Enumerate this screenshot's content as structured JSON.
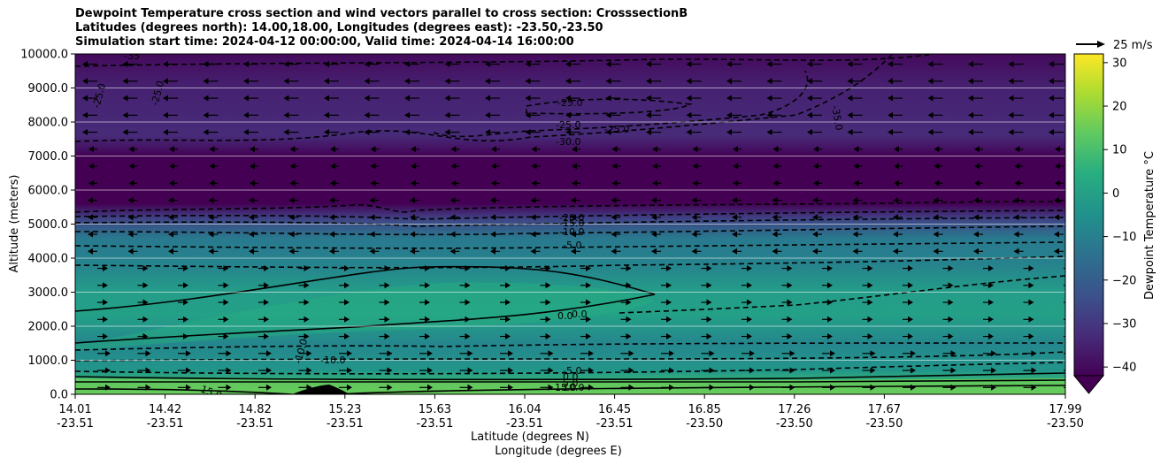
{
  "header": {
    "title_line1": "Dewpoint Temperature cross section and wind vectors parallel to cross section: CrosssectionB",
    "title_line2": "Latitudes (degrees north): 14.00,18.00, Longitudes (degrees east): -23.50,-23.50",
    "title_line3": "Simulation start time: 2024-04-12 00:00:00, Valid time: 2024-04-14 16:00:00"
  },
  "chart_data": {
    "type": "heatmap",
    "ylabel": "Altitude (meters)",
    "xlabel_line1": "Latitude (degrees N)",
    "xlabel_line2": "Longitude (degrees E)",
    "ylim": [
      0,
      10000
    ],
    "yticks": [
      "0.0",
      "1000.0",
      "2000.0",
      "3000.0",
      "4000.0",
      "5000.0",
      "6000.0",
      "7000.0",
      "8000.0",
      "9000.0",
      "10000.0"
    ],
    "xticks": [
      {
        "lat": "14.01",
        "lon": "-23.51"
      },
      {
        "lat": "14.42",
        "lon": "-23.51"
      },
      {
        "lat": "14.82",
        "lon": "-23.51"
      },
      {
        "lat": "15.23",
        "lon": "-23.51"
      },
      {
        "lat": "15.63",
        "lon": "-23.51"
      },
      {
        "lat": "16.04",
        "lon": "-23.51"
      },
      {
        "lat": "16.45",
        "lon": "-23.51"
      },
      {
        "lat": "16.85",
        "lon": "-23.50"
      },
      {
        "lat": "17.26",
        "lon": "-23.50"
      },
      {
        "lat": "17.67",
        "lon": "-23.50"
      },
      {
        "lat": "17.99",
        "lon": "-23.50"
      }
    ],
    "grid": "horizontal",
    "colorbar": {
      "label": "Dewpoint Temperature °C",
      "range": [
        -42,
        32
      ],
      "ticks": [
        "30",
        "20",
        "10",
        "0",
        "−10",
        "−20",
        "−30",
        "−40"
      ],
      "extend": "min",
      "colormap": "viridis"
    },
    "wind_key": "25 m/s",
    "dewpoint_layers": [
      {
        "alt": 0,
        "value": 14
      },
      {
        "alt": 300,
        "value": 8
      },
      {
        "alt": 700,
        "value": -3
      },
      {
        "alt": 1500,
        "value": -8
      },
      {
        "alt": 2300,
        "value": 0
      },
      {
        "alt": 3000,
        "value": -1
      },
      {
        "alt": 3800,
        "value": -9
      },
      {
        "alt": 4600,
        "value": -12
      },
      {
        "alt": 5200,
        "value": -28
      },
      {
        "alt": 5600,
        "value": -42
      },
      {
        "alt": 7000,
        "value": -42
      },
      {
        "alt": 7600,
        "value": -33
      },
      {
        "alt": 9000,
        "value": -35
      },
      {
        "alt": 10000,
        "value": -40
      }
    ],
    "contour_labels": [
      {
        "text": "-25.0"
      },
      {
        "text": "-25.0"
      },
      {
        "text": "-25.0"
      },
      {
        "text": "-25.0"
      },
      {
        "text": "-25.0"
      },
      {
        "text": "-30.0"
      },
      {
        "text": "-35.0"
      },
      {
        "text": "-35"
      },
      {
        "text": "-20.0"
      },
      {
        "text": "-15.0"
      },
      {
        "text": "-10.0"
      },
      {
        "text": "-5.0"
      },
      {
        "text": "0.0"
      },
      {
        "text": "0.0"
      },
      {
        "text": "-10.0"
      },
      {
        "text": "-10.0"
      },
      {
        "text": "-5.0"
      },
      {
        "text": "0.0"
      },
      {
        "text": "5.0"
      },
      {
        "text": "10.0"
      },
      {
        "text": "15.0"
      },
      {
        "text": "15.0"
      }
    ]
  }
}
